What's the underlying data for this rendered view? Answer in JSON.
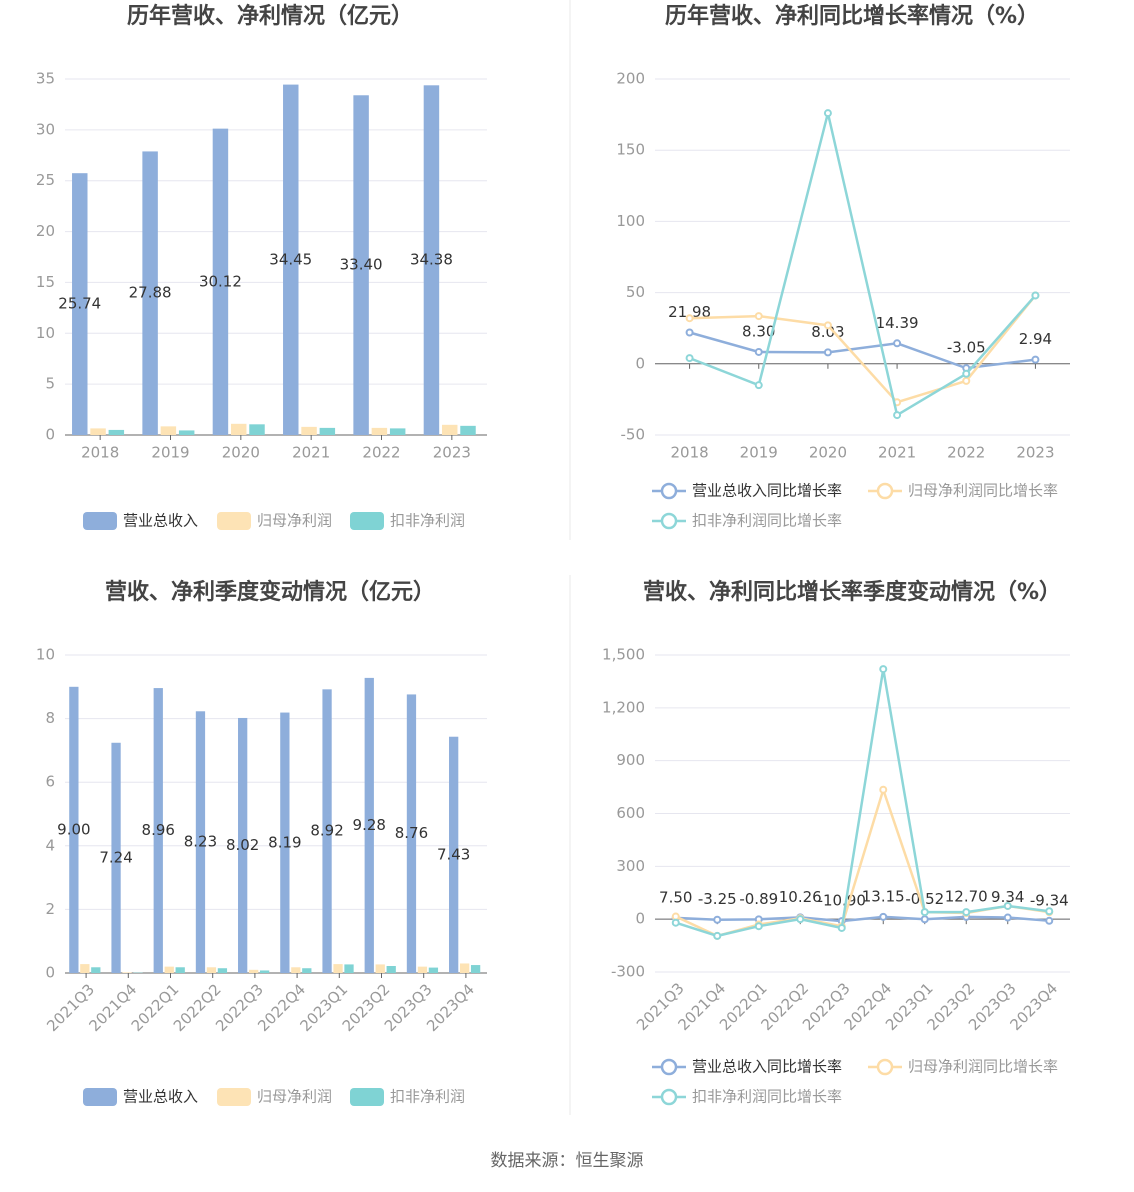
{
  "chart_data": [
    {
      "type": "bar",
      "title": "历年营收、净利情况（亿元）",
      "categories": [
        "2018",
        "2019",
        "2020",
        "2021",
        "2022",
        "2023"
      ],
      "series": [
        {
          "name": "营业总收入",
          "color": "#8eaedb",
          "values": [
            25.74,
            27.88,
            30.12,
            34.45,
            33.4,
            34.38
          ],
          "value_labels": [
            "25.74",
            "27.88",
            "30.12",
            "34.45",
            "33.40",
            "34.38"
          ]
        },
        {
          "name": "归母净利润",
          "color": "#fde3b5",
          "values": [
            0.65,
            0.85,
            1.1,
            0.8,
            0.7,
            1.0
          ]
        },
        {
          "name": "扣非净利润",
          "color": "#7fd3d4",
          "values": [
            0.5,
            0.45,
            1.05,
            0.7,
            0.65,
            0.9
          ]
        }
      ],
      "ylim": [
        0,
        35
      ],
      "yticks": [
        0,
        5,
        10,
        15,
        20,
        25,
        30,
        35
      ],
      "grid": true
    },
    {
      "type": "line",
      "title": "历年营收、净利同比增长率情况（%）",
      "categories": [
        "2018",
        "2019",
        "2020",
        "2021",
        "2022",
        "2023"
      ],
      "series": [
        {
          "name": "营业总收入同比增长率",
          "color": "#8eaedb",
          "values": [
            21.98,
            8.3,
            8.03,
            14.39,
            -3.05,
            2.94
          ],
          "value_labels": [
            "21.98",
            "8.30",
            "8.03",
            "14.39",
            "-3.05",
            "2.94"
          ]
        },
        {
          "name": "归母净利润同比增长率",
          "color": "#fddca6",
          "values": [
            32,
            33.5,
            27,
            -27,
            -12,
            48
          ]
        },
        {
          "name": "扣非净利润同比增长率",
          "color": "#8dd6d8",
          "values": [
            4,
            -15,
            176,
            -36,
            -7,
            48
          ]
        }
      ],
      "ylim": [
        -50,
        200
      ],
      "yticks": [
        -50,
        0,
        50,
        100,
        150,
        200
      ],
      "grid": true
    },
    {
      "type": "bar",
      "title": "营收、净利季度变动情况（亿元）",
      "categories": [
        "2021Q3",
        "2021Q4",
        "2022Q1",
        "2022Q2",
        "2022Q3",
        "2022Q4",
        "2023Q1",
        "2023Q2",
        "2023Q3",
        "2023Q4"
      ],
      "series": [
        {
          "name": "营业总收入",
          "color": "#8eaedb",
          "values": [
            9.0,
            7.24,
            8.96,
            8.23,
            8.02,
            8.19,
            8.92,
            9.28,
            8.76,
            7.43
          ],
          "value_labels": [
            "9.00",
            "7.24",
            "8.96",
            "8.23",
            "8.02",
            "8.19",
            "8.92",
            "9.28",
            "8.76",
            "7.43"
          ]
        },
        {
          "name": "归母净利润",
          "color": "#fde3b5",
          "values": [
            0.28,
            0.02,
            0.2,
            0.18,
            0.1,
            0.18,
            0.28,
            0.27,
            0.2,
            0.3
          ]
        },
        {
          "name": "扣非净利润",
          "color": "#7fd3d4",
          "values": [
            0.18,
            0.01,
            0.18,
            0.15,
            0.08,
            0.15,
            0.27,
            0.22,
            0.17,
            0.25
          ]
        }
      ],
      "ylim": [
        0,
        10
      ],
      "yticks": [
        0,
        2,
        4,
        6,
        8,
        10
      ],
      "grid": true
    },
    {
      "type": "line",
      "title": "营收、净利同比增长率季度变动情况（%）",
      "categories": [
        "2021Q3",
        "2021Q4",
        "2022Q1",
        "2022Q2",
        "2022Q3",
        "2022Q4",
        "2023Q1",
        "2023Q2",
        "2023Q3",
        "2023Q4"
      ],
      "series": [
        {
          "name": "营业总收入同比增长率",
          "color": "#8eaedb",
          "values": [
            7.5,
            -3.25,
            -0.89,
            10.26,
            -10.9,
            13.15,
            -0.52,
            12.7,
            9.34,
            -9.34
          ],
          "value_labels": [
            "7.50",
            "-3.25",
            "-0.89",
            "10.26",
            "-10.90",
            "13.15",
            "-0.52",
            "12.70",
            "9.34",
            "-9.34"
          ]
        },
        {
          "name": "归母净利润同比增长率",
          "color": "#fddca6",
          "values": [
            15,
            -95,
            -30,
            5,
            -40,
            735,
            40,
            35,
            75,
            40
          ]
        },
        {
          "name": "扣非净利润同比增长率",
          "color": "#8dd6d8",
          "values": [
            -20,
            -95,
            -40,
            0,
            -50,
            1420,
            40,
            40,
            75,
            45
          ]
        }
      ],
      "ylim": [
        -300,
        1500
      ],
      "yticks": [
        -300,
        0,
        300,
        600,
        900,
        {
          "value": 1200,
          "label": "1,200"
        },
        {
          "value": 1500,
          "label": "1,500"
        }
      ],
      "grid": true
    }
  ],
  "source": "数据来源：恒生聚源"
}
